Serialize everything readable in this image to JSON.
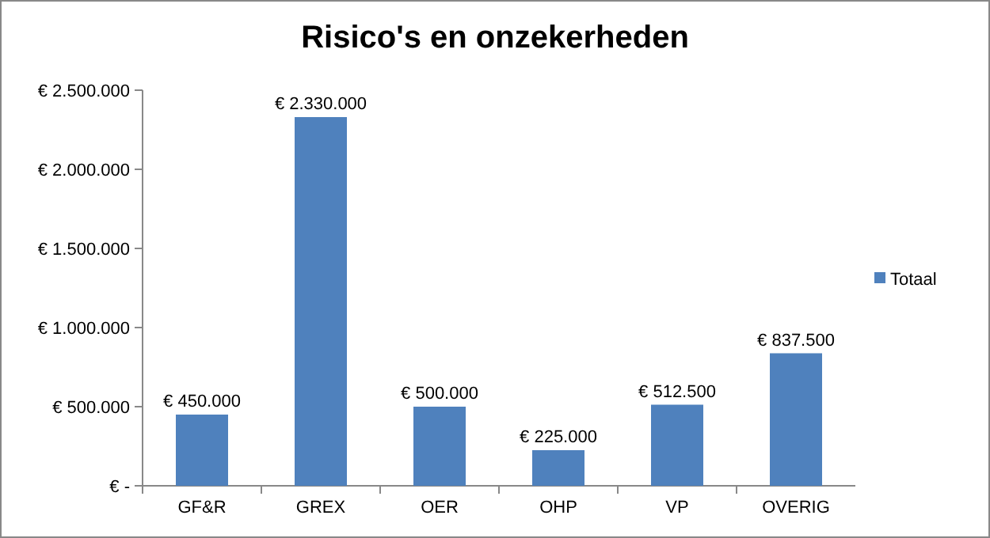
{
  "chart_data": {
    "type": "bar",
    "title": "Risico's en onzekerheden",
    "categories": [
      "GF&R",
      "GREX",
      "OER",
      "OHP",
      "VP",
      "OVERIG"
    ],
    "series": [
      {
        "name": "Totaal",
        "color": "#4f81bd",
        "values": [
          450000,
          2330000,
          500000,
          225000,
          512500,
          837500
        ],
        "value_labels": [
          "€ 450.000",
          "€ 2.330.000",
          "€ 500.000",
          "€ 225.000",
          "€ 512.500",
          "€ 837.500"
        ]
      }
    ],
    "ylim": [
      0,
      2500000
    ],
    "yticks": [
      {
        "value": 0,
        "label": "€ -"
      },
      {
        "value": 500000,
        "label": "€ 500.000"
      },
      {
        "value": 1000000,
        "label": "€ 1.000.000"
      },
      {
        "value": 1500000,
        "label": "€ 1.500.000"
      },
      {
        "value": 2000000,
        "label": "€ 2.000.000"
      },
      {
        "value": 2500000,
        "label": "€ 2.500.000"
      }
    ],
    "grid": false,
    "legend": "right"
  }
}
